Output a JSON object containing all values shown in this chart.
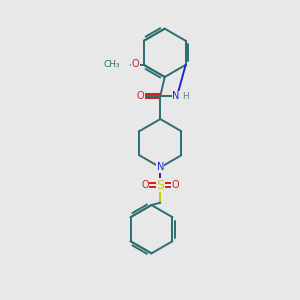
{
  "background_color": "#e8e8e8",
  "bond_color": "#2d6e6e",
  "atom_colors": {
    "N": "#2222cc",
    "O": "#cc2222",
    "S": "#cccc00",
    "H": "#558888",
    "C": "#2d6e6e"
  },
  "lw": 1.4,
  "fs": 7.0
}
